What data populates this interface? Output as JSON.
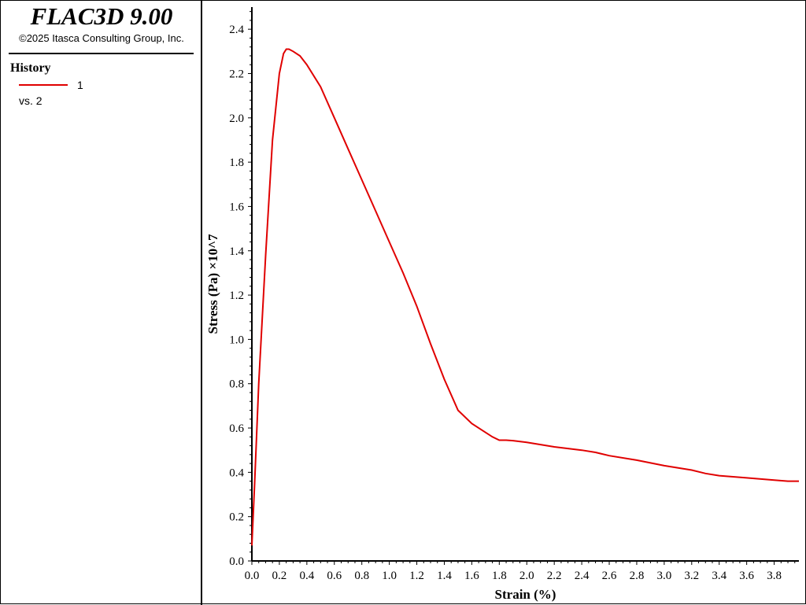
{
  "app": {
    "title": "FLAC3D 9.00",
    "copyright": "©2025 Itasca Consulting Group, Inc."
  },
  "legend": {
    "heading": "History",
    "entries": [
      {
        "label": "1",
        "vs": "vs. 2",
        "color": "#e00000"
      }
    ]
  },
  "chart_data": {
    "type": "line",
    "xlabel": "Strain (%)",
    "ylabel": "Stress (Pa) ×10^7",
    "xlim": [
      0,
      3.98
    ],
    "ylim": [
      0,
      2.5
    ],
    "x_ticks": [
      "0.0",
      "0.2",
      "0.4",
      "0.6",
      "0.8",
      "1.0",
      "1.2",
      "1.4",
      "1.6",
      "1.8",
      "2.0",
      "2.2",
      "2.4",
      "2.6",
      "2.8",
      "3.0",
      "3.2",
      "3.4",
      "3.6",
      "3.8"
    ],
    "y_ticks": [
      "0.0",
      "0.2",
      "0.4",
      "0.6",
      "0.8",
      "1.0",
      "1.2",
      "1.4",
      "1.6",
      "1.8",
      "2.0",
      "2.2",
      "2.4"
    ],
    "grid": false,
    "series": [
      {
        "name": "1",
        "color": "#e00000",
        "x": [
          0.0,
          0.02,
          0.05,
          0.1,
          0.15,
          0.2,
          0.23,
          0.25,
          0.27,
          0.3,
          0.35,
          0.4,
          0.5,
          0.6,
          0.7,
          0.8,
          0.9,
          1.0,
          1.1,
          1.2,
          1.3,
          1.4,
          1.5,
          1.6,
          1.7,
          1.75,
          1.8,
          1.85,
          1.9,
          2.0,
          2.2,
          2.4,
          2.5,
          2.6,
          2.8,
          3.0,
          3.2,
          3.3,
          3.4,
          3.5,
          3.6,
          3.8,
          3.9,
          3.98
        ],
        "y": [
          0.07,
          0.35,
          0.8,
          1.38,
          1.9,
          2.2,
          2.29,
          2.31,
          2.31,
          2.3,
          2.28,
          2.24,
          2.14,
          2.0,
          1.86,
          1.72,
          1.58,
          1.44,
          1.3,
          1.15,
          0.98,
          0.82,
          0.68,
          0.62,
          0.58,
          0.56,
          0.545,
          0.545,
          0.543,
          0.535,
          0.515,
          0.5,
          0.49,
          0.475,
          0.455,
          0.43,
          0.41,
          0.395,
          0.385,
          0.38,
          0.375,
          0.365,
          0.36,
          0.36
        ]
      }
    ]
  }
}
